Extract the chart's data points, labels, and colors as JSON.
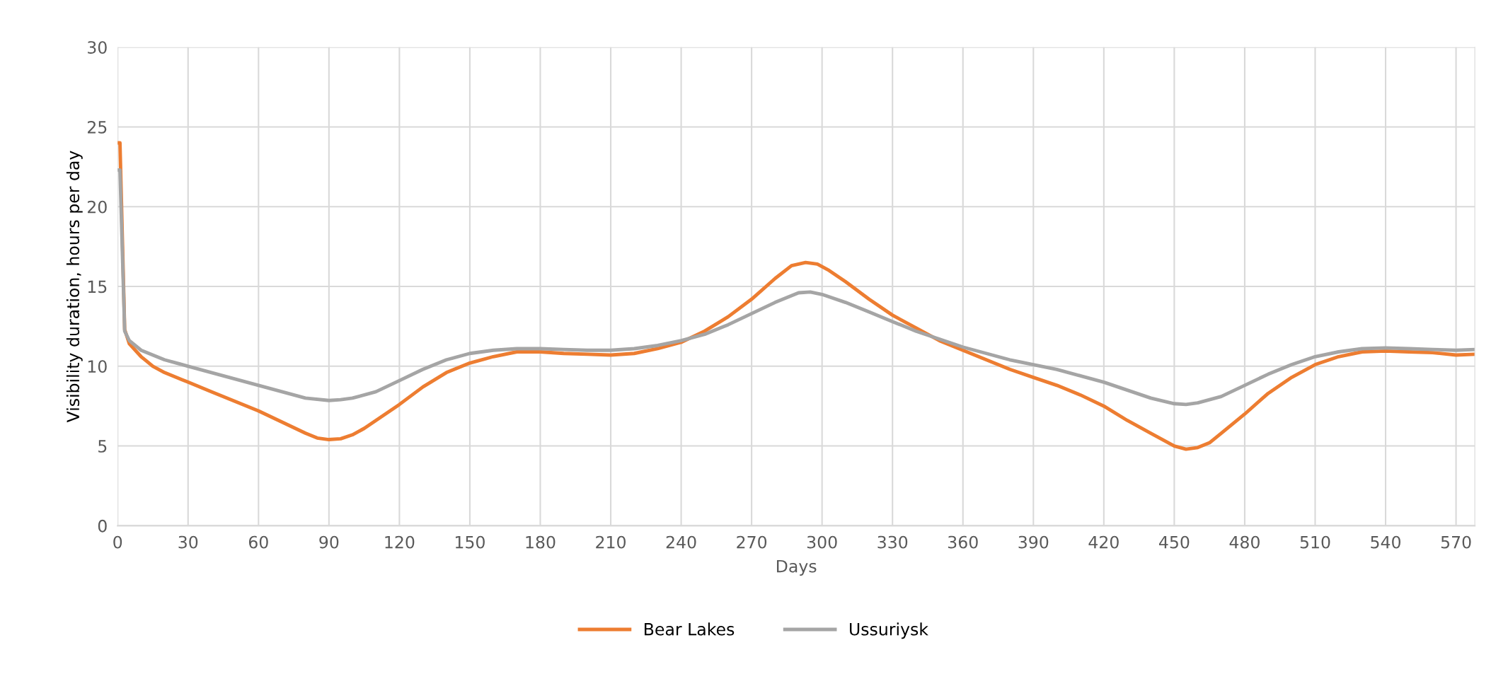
{
  "chart_data": {
    "type": "line",
    "xlabel": "Days",
    "ylabel": "Visibility duration, hours per day",
    "xlim": [
      0,
      578
    ],
    "xticks": [
      0,
      30,
      60,
      90,
      120,
      150,
      180,
      210,
      240,
      270,
      300,
      330,
      360,
      390,
      420,
      450,
      480,
      510,
      540,
      570
    ],
    "ylim": [
      0,
      30
    ],
    "yticks": [
      0,
      5,
      10,
      15,
      20,
      25,
      30
    ],
    "grid": true,
    "legend": "bottom",
    "marker": "none",
    "line_style": "solid",
    "series": [
      {
        "name": "Bear Lakes",
        "color": "#ed7d31",
        "x": [
          0,
          1,
          3,
          5,
          10,
          15,
          20,
          30,
          40,
          50,
          60,
          70,
          80,
          85,
          90,
          95,
          100,
          105,
          110,
          120,
          130,
          140,
          150,
          160,
          170,
          180,
          190,
          200,
          210,
          220,
          230,
          240,
          250,
          260,
          270,
          280,
          287,
          293,
          298,
          303,
          310,
          320,
          330,
          340,
          350,
          360,
          370,
          380,
          390,
          400,
          410,
          420,
          430,
          440,
          450,
          455,
          460,
          465,
          470,
          480,
          490,
          500,
          510,
          520,
          530,
          540,
          550,
          560,
          570,
          578
        ],
        "values": [
          24,
          24,
          12.3,
          11.4,
          10.6,
          10.0,
          9.6,
          9.0,
          8.4,
          7.8,
          7.2,
          6.5,
          5.8,
          5.5,
          5.4,
          5.45,
          5.7,
          6.1,
          6.6,
          7.6,
          8.7,
          9.6,
          10.2,
          10.6,
          10.9,
          10.9,
          10.8,
          10.75,
          10.7,
          10.8,
          11.1,
          11.5,
          12.2,
          13.1,
          14.2,
          15.5,
          16.3,
          16.5,
          16.4,
          16.0,
          15.3,
          14.2,
          13.2,
          12.4,
          11.6,
          11.0,
          10.4,
          9.8,
          9.3,
          8.8,
          8.2,
          7.5,
          6.6,
          5.8,
          5.0,
          4.8,
          4.9,
          5.2,
          5.8,
          7.0,
          8.3,
          9.3,
          10.1,
          10.6,
          10.9,
          10.95,
          10.9,
          10.85,
          10.7,
          10.75
        ]
      },
      {
        "name": "Ussuriysk",
        "color": "#a5a5a5",
        "x": [
          0,
          1,
          3,
          5,
          10,
          20,
          30,
          40,
          50,
          60,
          70,
          80,
          90,
          95,
          100,
          110,
          120,
          130,
          140,
          150,
          160,
          170,
          180,
          190,
          200,
          210,
          220,
          230,
          240,
          250,
          260,
          270,
          280,
          290,
          295,
          300,
          310,
          320,
          330,
          340,
          350,
          360,
          370,
          380,
          390,
          400,
          410,
          420,
          430,
          440,
          450,
          455,
          460,
          470,
          480,
          490,
          500,
          510,
          520,
          530,
          540,
          550,
          560,
          570,
          578
        ],
        "values": [
          22.3,
          22.3,
          12.2,
          11.6,
          11.0,
          10.4,
          10.0,
          9.6,
          9.2,
          8.8,
          8.4,
          8.0,
          7.85,
          7.9,
          8.0,
          8.4,
          9.1,
          9.8,
          10.4,
          10.8,
          11.0,
          11.1,
          11.1,
          11.05,
          11.0,
          11.0,
          11.1,
          11.3,
          11.6,
          12.0,
          12.6,
          13.3,
          14.0,
          14.6,
          14.65,
          14.5,
          14.0,
          13.4,
          12.8,
          12.2,
          11.7,
          11.2,
          10.8,
          10.4,
          10.1,
          9.8,
          9.4,
          9.0,
          8.5,
          8.0,
          7.65,
          7.6,
          7.7,
          8.1,
          8.8,
          9.5,
          10.1,
          10.6,
          10.9,
          11.1,
          11.15,
          11.1,
          11.05,
          11.0,
          11.05
        ]
      }
    ]
  }
}
